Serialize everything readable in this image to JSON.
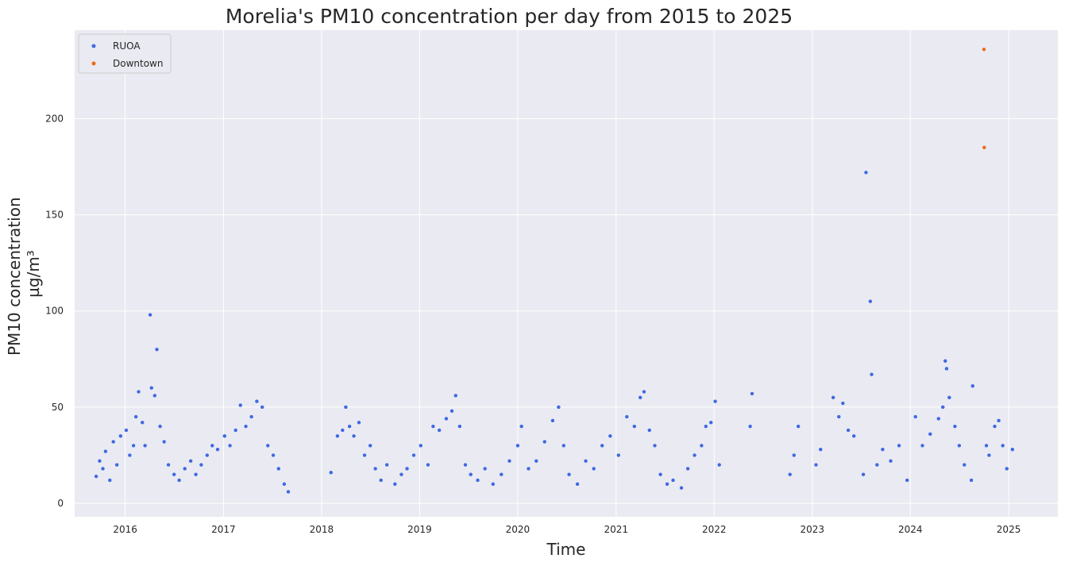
{
  "chart_data": {
    "type": "scatter",
    "title": "Morelia's PM10 concentration per day from 2015 to 2025",
    "xlabel": "Time",
    "ylabel_lines": [
      "PM10 concentration",
      "µg/m³"
    ],
    "x_ticks": [
      "2016",
      "2017",
      "2018",
      "2019",
      "2020",
      "2021",
      "2022",
      "2023",
      "2024",
      "2025"
    ],
    "y_ticks": [
      0,
      50,
      100,
      150,
      200
    ],
    "xlim": [
      "2015-06-27",
      "2025-07-03"
    ],
    "ylim": [
      -7,
      246
    ],
    "grid": true,
    "legend_position": "top-left",
    "legend": [
      "RUOA",
      "Downtown"
    ],
    "colors": {
      "background": "#eaeaf2",
      "grid": "#ffffff",
      "RUOA": "#4169e1",
      "Downtown": "#ec6a1a"
    },
    "series": [
      {
        "name": "RUOA",
        "points": [
          [
            "2015-09-15",
            14
          ],
          [
            "2015-09-28",
            22
          ],
          [
            "2015-10-10",
            18
          ],
          [
            "2015-10-20",
            27
          ],
          [
            "2015-11-05",
            12
          ],
          [
            "2015-11-18",
            32
          ],
          [
            "2015-12-01",
            20
          ],
          [
            "2015-12-15",
            35
          ],
          [
            "2016-01-05",
            38
          ],
          [
            "2016-01-18",
            25
          ],
          [
            "2016-02-01",
            30
          ],
          [
            "2016-02-10",
            45
          ],
          [
            "2016-02-20",
            58
          ],
          [
            "2016-03-05",
            42
          ],
          [
            "2016-03-15",
            30
          ],
          [
            "2016-04-03",
            98
          ],
          [
            "2016-04-08",
            60
          ],
          [
            "2016-04-20",
            56
          ],
          [
            "2016-04-28",
            80
          ],
          [
            "2016-05-10",
            40
          ],
          [
            "2016-05-25",
            32
          ],
          [
            "2016-06-10",
            20
          ],
          [
            "2016-07-01",
            15
          ],
          [
            "2016-07-20",
            12
          ],
          [
            "2016-08-10",
            18
          ],
          [
            "2016-09-01",
            22
          ],
          [
            "2016-09-20",
            15
          ],
          [
            "2016-10-10",
            20
          ],
          [
            "2016-11-01",
            25
          ],
          [
            "2016-11-20",
            30
          ],
          [
            "2016-12-10",
            28
          ],
          [
            "2017-01-05",
            35
          ],
          [
            "2017-01-25",
            30
          ],
          [
            "2017-02-15",
            38
          ],
          [
            "2017-03-05",
            51
          ],
          [
            "2017-03-25",
            40
          ],
          [
            "2017-04-15",
            45
          ],
          [
            "2017-05-05",
            53
          ],
          [
            "2017-05-25",
            50
          ],
          [
            "2017-06-15",
            30
          ],
          [
            "2017-07-05",
            25
          ],
          [
            "2017-07-25",
            18
          ],
          [
            "2017-08-15",
            10
          ],
          [
            "2017-08-30",
            6
          ],
          [
            "2018-02-05",
            16
          ],
          [
            "2018-03-01",
            35
          ],
          [
            "2018-03-20",
            38
          ],
          [
            "2018-04-01",
            50
          ],
          [
            "2018-04-15",
            40
          ],
          [
            "2018-05-01",
            35
          ],
          [
            "2018-05-20",
            42
          ],
          [
            "2018-06-10",
            25
          ],
          [
            "2018-07-01",
            30
          ],
          [
            "2018-07-20",
            18
          ],
          [
            "2018-08-10",
            12
          ],
          [
            "2018-09-01",
            20
          ],
          [
            "2018-10-01",
            10
          ],
          [
            "2018-10-25",
            15
          ],
          [
            "2018-11-15",
            18
          ],
          [
            "2018-12-10",
            25
          ],
          [
            "2019-01-05",
            30
          ],
          [
            "2019-02-01",
            20
          ],
          [
            "2019-02-20",
            40
          ],
          [
            "2019-03-15",
            38
          ],
          [
            "2019-04-10",
            44
          ],
          [
            "2019-05-01",
            48
          ],
          [
            "2019-05-15",
            56
          ],
          [
            "2019-05-30",
            40
          ],
          [
            "2019-06-20",
            20
          ],
          [
            "2019-07-10",
            15
          ],
          [
            "2019-08-05",
            12
          ],
          [
            "2019-09-01",
            18
          ],
          [
            "2019-10-01",
            10
          ],
          [
            "2019-11-01",
            15
          ],
          [
            "2019-12-01",
            22
          ],
          [
            "2020-01-01",
            30
          ],
          [
            "2020-01-15",
            40
          ],
          [
            "2020-02-10",
            18
          ],
          [
            "2020-03-10",
            22
          ],
          [
            "2020-04-10",
            32
          ],
          [
            "2020-05-10",
            43
          ],
          [
            "2020-06-01",
            50
          ],
          [
            "2020-06-20",
            30
          ],
          [
            "2020-07-10",
            15
          ],
          [
            "2020-08-10",
            10
          ],
          [
            "2020-09-10",
            22
          ],
          [
            "2020-10-10",
            18
          ],
          [
            "2020-11-10",
            30
          ],
          [
            "2020-12-10",
            35
          ],
          [
            "2021-01-10",
            25
          ],
          [
            "2021-02-10",
            45
          ],
          [
            "2021-03-10",
            40
          ],
          [
            "2021-04-01",
            55
          ],
          [
            "2021-04-15",
            58
          ],
          [
            "2021-05-05",
            38
          ],
          [
            "2021-05-25",
            30
          ],
          [
            "2021-06-15",
            15
          ],
          [
            "2021-07-10",
            10
          ],
          [
            "2021-08-01",
            12
          ],
          [
            "2021-09-01",
            8
          ],
          [
            "2021-09-25",
            18
          ],
          [
            "2021-10-20",
            25
          ],
          [
            "2021-11-15",
            30
          ],
          [
            "2021-12-01",
            40
          ],
          [
            "2021-12-20",
            42
          ],
          [
            "2022-01-05",
            53
          ],
          [
            "2022-01-20",
            20
          ],
          [
            "2022-05-15",
            40
          ],
          [
            "2022-05-22",
            57
          ],
          [
            "2022-10-10",
            15
          ],
          [
            "2022-10-25",
            25
          ],
          [
            "2022-11-10",
            40
          ],
          [
            "2023-01-15",
            20
          ],
          [
            "2023-02-01",
            28
          ],
          [
            "2023-03-20",
            55
          ],
          [
            "2023-04-10",
            45
          ],
          [
            "2023-04-25",
            52
          ],
          [
            "2023-05-15",
            38
          ],
          [
            "2023-06-05",
            35
          ],
          [
            "2023-07-10",
            15
          ],
          [
            "2023-07-20",
            172
          ],
          [
            "2023-08-05",
            105
          ],
          [
            "2023-08-10",
            67
          ],
          [
            "2023-08-30",
            20
          ],
          [
            "2023-09-20",
            28
          ],
          [
            "2023-10-20",
            22
          ],
          [
            "2023-11-20",
            30
          ],
          [
            "2023-12-20",
            12
          ],
          [
            "2024-01-20",
            45
          ],
          [
            "2024-02-15",
            30
          ],
          [
            "2024-03-15",
            36
          ],
          [
            "2024-04-15",
            44
          ],
          [
            "2024-05-01",
            50
          ],
          [
            "2024-05-10",
            74
          ],
          [
            "2024-05-15",
            70
          ],
          [
            "2024-05-25",
            55
          ],
          [
            "2024-06-15",
            40
          ],
          [
            "2024-07-01",
            30
          ],
          [
            "2024-07-20",
            20
          ],
          [
            "2024-08-15",
            12
          ],
          [
            "2024-08-20",
            61
          ],
          [
            "2024-10-10",
            30
          ],
          [
            "2024-10-20",
            25
          ],
          [
            "2024-11-10",
            40
          ],
          [
            "2024-11-25",
            43
          ],
          [
            "2024-12-10",
            30
          ],
          [
            "2024-12-25",
            18
          ],
          [
            "2025-01-15",
            28
          ]
        ]
      },
      {
        "name": "Downtown",
        "points": [
          [
            "2024-10-01",
            236
          ],
          [
            "2024-10-02",
            185
          ]
        ]
      }
    ]
  }
}
